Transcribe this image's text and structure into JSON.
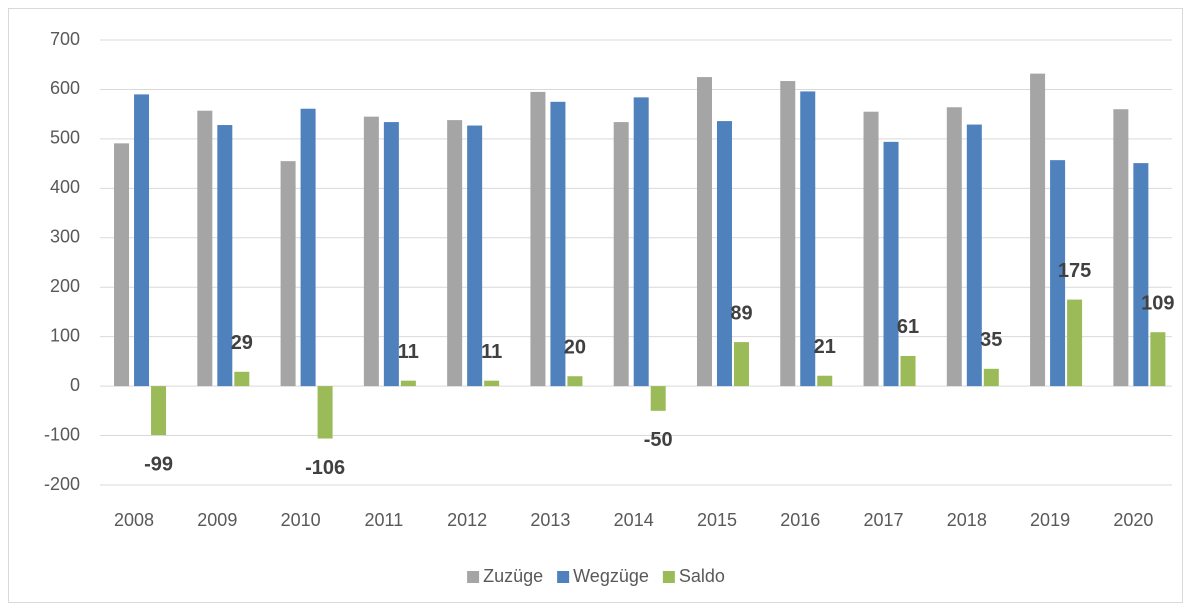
{
  "chart_data": {
    "type": "bar",
    "categories": [
      "2008",
      "2009",
      "2010",
      "2011",
      "2012",
      "2013",
      "2014",
      "2015",
      "2016",
      "2017",
      "2018",
      "2019",
      "2020"
    ],
    "series": [
      {
        "name": "Zuzüge",
        "color": "#a5a5a5",
        "values": [
          491,
          557,
          455,
          545,
          538,
          595,
          534,
          625,
          617,
          555,
          564,
          632,
          560
        ]
      },
      {
        "name": "Wegzüge",
        "color": "#4f81bd",
        "values": [
          590,
          528,
          561,
          534,
          527,
          575,
          584,
          536,
          596,
          494,
          529,
          457,
          451
        ]
      },
      {
        "name": "Saldo",
        "color": "#9bbb59",
        "values": [
          -99,
          29,
          -106,
          11,
          11,
          20,
          -50,
          89,
          21,
          61,
          35,
          175,
          109
        ],
        "data_labels": true
      }
    ],
    "ylim": [
      -200,
      700
    ],
    "yticks": [
      -200,
      -100,
      0,
      100,
      200,
      300,
      400,
      500,
      600,
      700
    ],
    "grid": true,
    "legend": "bottom"
  }
}
